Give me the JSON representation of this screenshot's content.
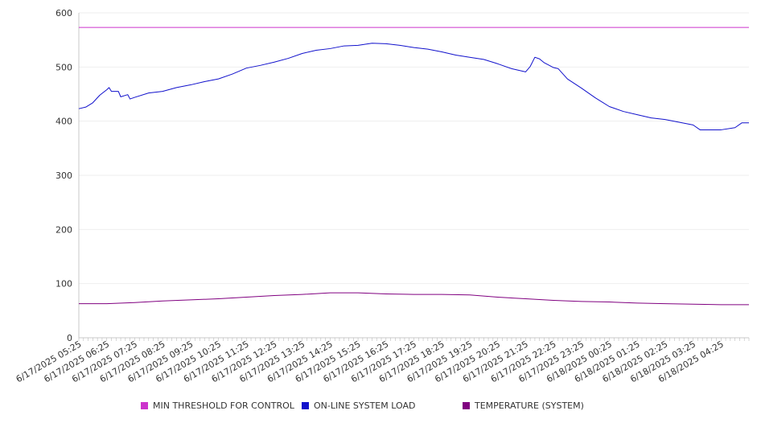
{
  "chart_data": {
    "type": "line",
    "title": "",
    "xlabel": "",
    "ylabel": "",
    "ylim": [
      0,
      600
    ],
    "yticks": [
      0,
      100,
      200,
      300,
      400,
      500,
      600
    ],
    "grid": true,
    "legend_position": "bottom",
    "x_tick_labels": [
      "6/17/2025 05:25",
      "6/17/2025 06:25",
      "6/17/2025 07:25",
      "6/17/2025 08:25",
      "6/17/2025 09:25",
      "6/17/2025 10:25",
      "6/17/2025 11:25",
      "6/17/2025 12:25",
      "6/17/2025 13:25",
      "6/17/2025 14:25",
      "6/17/2025 15:25",
      "6/17/2025 16:25",
      "6/17/2025 17:25",
      "6/17/2025 18:25",
      "6/17/2025 19:25",
      "6/17/2025 20:25",
      "6/17/2025 21:25",
      "6/17/2025 22:25",
      "6/17/2025 23:25",
      "6/18/2025 00:25",
      "6/18/2025 01:25",
      "6/18/2025 02:25",
      "6/18/2025 03:25",
      "6/18/2025 04:25"
    ],
    "x_range": [
      "6/17/2025 05:25",
      "6/18/2025 05:25"
    ],
    "series": [
      {
        "name": "MIN THRESHOLD FOR CONTROL",
        "color": "#cc33cc",
        "points": [
          [
            "6/17/2025 05:25",
            573
          ],
          [
            "6/18/2025 05:25",
            573
          ]
        ]
      },
      {
        "name": "ON-LINE SYSTEM LOAD",
        "color": "#1111cc",
        "points": [
          [
            "6/17/2025 05:25",
            423
          ],
          [
            "6/17/2025 05:40",
            426
          ],
          [
            "6/17/2025 05:55",
            434
          ],
          [
            "6/17/2025 06:10",
            448
          ],
          [
            "6/17/2025 06:25",
            458
          ],
          [
            "6/17/2025 06:30",
            462
          ],
          [
            "6/17/2025 06:35",
            455
          ],
          [
            "6/17/2025 06:50",
            455
          ],
          [
            "6/17/2025 06:55",
            445
          ],
          [
            "6/17/2025 07:10",
            449
          ],
          [
            "6/17/2025 07:15",
            441
          ],
          [
            "6/17/2025 07:25",
            444
          ],
          [
            "6/17/2025 07:55",
            452
          ],
          [
            "6/17/2025 08:25",
            455
          ],
          [
            "6/17/2025 08:55",
            462
          ],
          [
            "6/17/2025 09:25",
            467
          ],
          [
            "6/17/2025 09:55",
            473
          ],
          [
            "6/17/2025 10:25",
            478
          ],
          [
            "6/17/2025 10:55",
            487
          ],
          [
            "6/17/2025 11:25",
            498
          ],
          [
            "6/17/2025 11:55",
            503
          ],
          [
            "6/17/2025 12:25",
            509
          ],
          [
            "6/17/2025 12:55",
            516
          ],
          [
            "6/17/2025 13:25",
            525
          ],
          [
            "6/17/2025 13:55",
            531
          ],
          [
            "6/17/2025 14:25",
            534
          ],
          [
            "6/17/2025 14:55",
            539
          ],
          [
            "6/17/2025 15:25",
            540
          ],
          [
            "6/17/2025 15:55",
            544
          ],
          [
            "6/17/2025 16:25",
            543
          ],
          [
            "6/17/2025 16:55",
            540
          ],
          [
            "6/17/2025 17:25",
            536
          ],
          [
            "6/17/2025 17:55",
            533
          ],
          [
            "6/17/2025 18:25",
            528
          ],
          [
            "6/17/2025 18:55",
            522
          ],
          [
            "6/17/2025 19:25",
            518
          ],
          [
            "6/17/2025 19:55",
            514
          ],
          [
            "6/17/2025 20:25",
            506
          ],
          [
            "6/17/2025 20:55",
            497
          ],
          [
            "6/17/2025 21:25",
            491
          ],
          [
            "6/17/2025 21:35",
            501
          ],
          [
            "6/17/2025 21:45",
            518
          ],
          [
            "6/17/2025 21:55",
            515
          ],
          [
            "6/17/2025 22:05",
            508
          ],
          [
            "6/17/2025 22:25",
            499
          ],
          [
            "6/17/2025 22:35",
            497
          ],
          [
            "6/17/2025 22:55",
            478
          ],
          [
            "6/17/2025 23:25",
            461
          ],
          [
            "6/17/2025 23:55",
            443
          ],
          [
            "6/18/2025 00:25",
            427
          ],
          [
            "6/18/2025 00:55",
            418
          ],
          [
            "6/18/2025 01:25",
            412
          ],
          [
            "6/18/2025 01:55",
            406
          ],
          [
            "6/18/2025 02:25",
            403
          ],
          [
            "6/18/2025 02:55",
            398
          ],
          [
            "6/18/2025 03:25",
            393
          ],
          [
            "6/18/2025 03:40",
            384
          ],
          [
            "6/18/2025 03:55",
            384
          ],
          [
            "6/18/2025 04:25",
            384
          ],
          [
            "6/18/2025 04:55",
            388
          ],
          [
            "6/18/2025 05:10",
            397
          ],
          [
            "6/18/2025 05:25",
            397
          ]
        ]
      },
      {
        "name": "TEMPERATURE (SYSTEM)",
        "color": "#800080",
        "points": [
          [
            "6/17/2025 05:25",
            63
          ],
          [
            "6/17/2025 06:25",
            63
          ],
          [
            "6/17/2025 07:25",
            65
          ],
          [
            "6/17/2025 08:25",
            68
          ],
          [
            "6/17/2025 09:25",
            70
          ],
          [
            "6/17/2025 10:25",
            72
          ],
          [
            "6/17/2025 11:25",
            75
          ],
          [
            "6/17/2025 12:25",
            78
          ],
          [
            "6/17/2025 13:25",
            80
          ],
          [
            "6/17/2025 14:25",
            83
          ],
          [
            "6/17/2025 15:25",
            83
          ],
          [
            "6/17/2025 16:25",
            81
          ],
          [
            "6/17/2025 17:25",
            80
          ],
          [
            "6/17/2025 18:25",
            80
          ],
          [
            "6/17/2025 19:25",
            79
          ],
          [
            "6/17/2025 20:25",
            75
          ],
          [
            "6/17/2025 21:25",
            72
          ],
          [
            "6/17/2025 22:25",
            69
          ],
          [
            "6/17/2025 23:25",
            67
          ],
          [
            "6/18/2025 00:25",
            66
          ],
          [
            "6/18/2025 01:25",
            64
          ],
          [
            "6/18/2025 02:25",
            63
          ],
          [
            "6/18/2025 03:25",
            62
          ],
          [
            "6/18/2025 04:25",
            61
          ],
          [
            "6/18/2025 05:25",
            61
          ]
        ]
      }
    ]
  }
}
